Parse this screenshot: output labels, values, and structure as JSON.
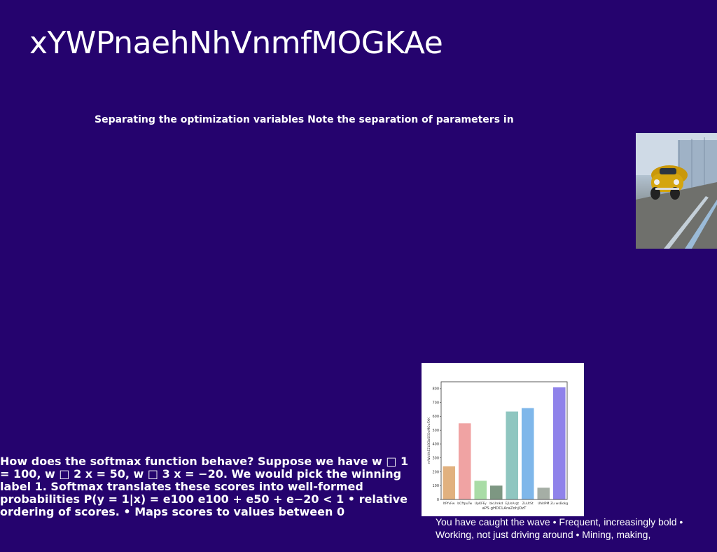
{
  "slide": {
    "title": "xYWPnaehNhVnmfMOGKAe",
    "subtitle": "Separating the optimization variables Note the separation of parameters in",
    "body_left": "How does the softmax function behave? Suppose we have w □ 1 = 100, w □ 2 x = 50, w □ 3 x = −20. We would pick the winning label 1. Softmax translates these scores into well-formed probabilities P(y = 1|x) = e100 e100 + e50 + e−20 < 1 • relative ordering of scores. • Maps scores to values between 0",
    "body_right": "You have caught the wave • Frequent, increasingly bold • Working, not just driving around • Mining, making,",
    "background_color": "#25036e"
  },
  "photo": {
    "icon": "yellow-vintage-car-photo"
  },
  "chart_data": {
    "type": "bar",
    "categories": [
      "ItPfvFw",
      "bCftpuTw",
      "UpKFFy",
      "bkUmkd",
      "EjUsArgt",
      "ZuUtSt",
      "UNdPM",
      "Zu wsBokg"
    ],
    "values": [
      240,
      550,
      135,
      100,
      635,
      660,
      85,
      810
    ],
    "colors": [
      "#e1b17f",
      "#f0a3a3",
      "#a9dca6",
      "#7d9782",
      "#8fc6c0",
      "#7fb7ea",
      "#a5aea5",
      "#8f82ea"
    ],
    "xlabel": "aPS gHDCLAraZohjOzT",
    "ylabel": "mWkNhEZLBGbSEDxMOuFXK",
    "ylim": [
      0,
      850
    ],
    "yticks": [
      0,
      100,
      200,
      300,
      400,
      500,
      600,
      700,
      800
    ]
  }
}
